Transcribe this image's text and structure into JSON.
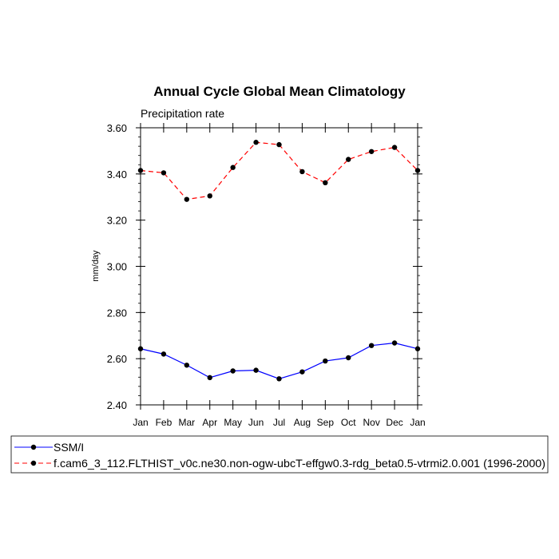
{
  "chart_data": {
    "type": "line",
    "title": "Annual Cycle Global Mean Climatology",
    "subtitle": "Precipitation rate",
    "xlabel": "",
    "ylabel": "mm/day",
    "categories": [
      "Jan",
      "Feb",
      "Mar",
      "Apr",
      "May",
      "Jun",
      "Jul",
      "Aug",
      "Sep",
      "Oct",
      "Nov",
      "Dec",
      "Jan"
    ],
    "ylim": [
      2.4,
      3.6
    ],
    "yticks": [
      "2.40",
      "2.60",
      "2.80",
      "3.00",
      "3.20",
      "3.40",
      "3.60"
    ],
    "ytick_values": [
      2.4,
      2.6,
      2.8,
      3.0,
      3.2,
      3.4,
      3.6
    ],
    "grid": false,
    "legend_placement": "bottom",
    "series": [
      {
        "name": "SSM/I",
        "color": "#0000ff",
        "dash": "solid",
        "values": [
          2.643,
          2.62,
          2.572,
          2.518,
          2.547,
          2.55,
          2.513,
          2.543,
          2.59,
          2.604,
          2.657,
          2.668,
          2.643
        ]
      },
      {
        "name": "f.cam6_3_112.FLTHIST_v0c.ne30.non-ogw-ubcT-effgw0.3-rdg_beta0.5-vtrmi2.0.001 (1996-2000)",
        "color": "#ff0000",
        "dash": "dashed",
        "values": [
          3.415,
          3.405,
          3.29,
          3.305,
          3.428,
          3.537,
          3.527,
          3.41,
          3.362,
          3.463,
          3.497,
          3.515,
          3.415
        ]
      }
    ]
  }
}
